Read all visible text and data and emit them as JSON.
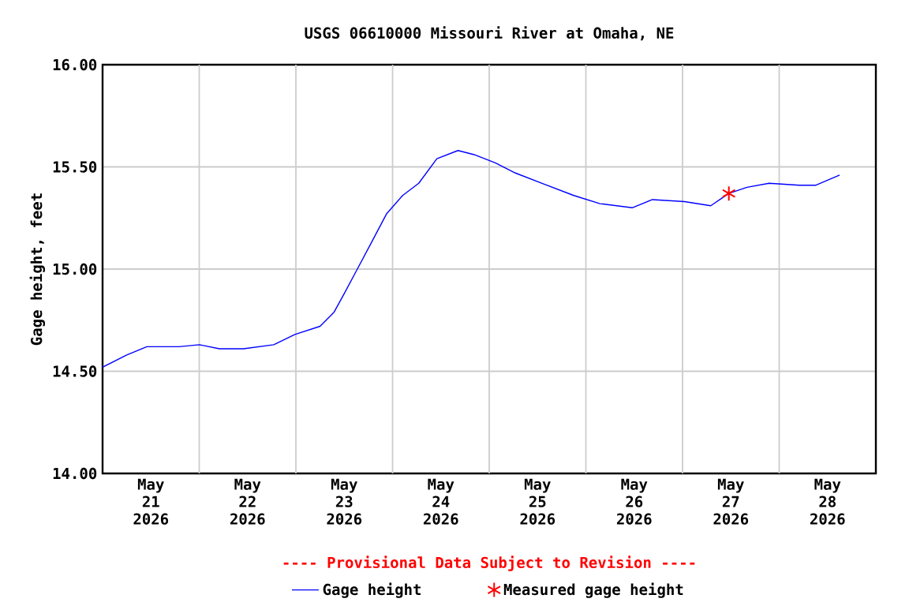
{
  "chart_data": {
    "type": "line",
    "title": "USGS 06610000 Missouri River at Omaha, NE",
    "ylabel": "Gage height, feet",
    "annotations": [
      "---- Provisional Data Subject to Revision ----"
    ],
    "xlim": [
      "2026-05-21T00:00",
      "2026-05-29T00:00"
    ],
    "xticks": [
      {
        "value": "2026-05-21T12:00",
        "label": "May 21 2026"
      },
      {
        "value": "2026-05-22T12:00",
        "label": "May 22 2026"
      },
      {
        "value": "2026-05-23T12:00",
        "label": "May 23 2026"
      },
      {
        "value": "2026-05-24T12:00",
        "label": "May 24 2026"
      },
      {
        "value": "2026-05-25T12:00",
        "label": "May 25 2026"
      },
      {
        "value": "2026-05-26T12:00",
        "label": "May 26 2026"
      },
      {
        "value": "2026-05-27T12:00",
        "label": "May 27 2026"
      },
      {
        "value": "2026-05-28T12:00",
        "label": "May 28 2026"
      },
      {
        "value": "2026-05-22T00:00",
        "label": null
      },
      {
        "value": "2026-05-23T00:00",
        "label": null
      },
      {
        "value": "2026-05-24T00:00",
        "label": null
      },
      {
        "value": "2026-05-25T00:00",
        "label": null
      },
      {
        "value": "2026-05-26T00:00",
        "label": null
      },
      {
        "value": "2026-05-27T00:00",
        "label": null
      },
      {
        "value": "2026-05-28T00:00",
        "label": null
      }
    ],
    "ylim": [
      14,
      16
    ],
    "yticks": [
      {
        "value": 14,
        "label": "14.00"
      },
      {
        "value": 14.5,
        "label": "14.50"
      },
      {
        "value": 15,
        "label": "15.00"
      },
      {
        "value": 15.5,
        "label": "15.50"
      },
      {
        "value": 16,
        "label": "16.00"
      }
    ],
    "grid": true,
    "legend": "bottom",
    "series": [
      {
        "name": "Gage height",
        "color": "#0000ff",
        "marker": "none",
        "x": [
          "2026-05-21T00:00",
          "2026-05-21T06:00",
          "2026-05-21T11:00",
          "2026-05-21T19:00",
          "2026-05-22T00:00",
          "2026-05-22T05:00",
          "2026-05-22T11:00",
          "2026-05-22T18:30",
          "2026-05-22T23:45",
          "2026-05-23T06:00",
          "2026-05-23T09:30",
          "2026-05-23T12:00",
          "2026-05-23T15:15",
          "2026-05-23T18:45",
          "2026-05-23T22:30",
          "2026-05-24T02:30",
          "2026-05-24T06:30",
          "2026-05-24T11:00",
          "2026-05-24T16:15",
          "2026-05-24T20:15",
          "2026-05-25T01:30",
          "2026-05-25T06:30",
          "2026-05-25T13:00",
          "2026-05-25T21:00",
          "2026-05-26T03:30",
          "2026-05-26T11:30",
          "2026-05-26T16:30",
          "2026-05-27T00:30",
          "2026-05-27T07:00",
          "2026-05-27T11:30",
          "2026-05-27T16:00",
          "2026-05-27T21:30",
          "2026-05-28T05:00",
          "2026-05-28T09:00",
          "2026-05-28T15:00"
        ],
        "values": [
          14.52,
          14.58,
          14.62,
          14.62,
          14.63,
          14.61,
          14.61,
          14.63,
          14.68,
          14.72,
          14.79,
          14.88,
          15.0,
          15.13,
          15.27,
          15.36,
          15.42,
          15.54,
          15.58,
          15.56,
          15.52,
          15.47,
          15.42,
          15.36,
          15.32,
          15.3,
          15.34,
          15.33,
          15.31,
          15.37,
          15.4,
          15.42,
          15.41,
          15.41,
          15.46
        ]
      },
      {
        "name": "Measured gage height",
        "type": "scatter",
        "color": "#ff0000",
        "marker": "cross",
        "x": [
          "2026-05-27T11:30"
        ],
        "values": [
          15.37
        ]
      }
    ]
  }
}
